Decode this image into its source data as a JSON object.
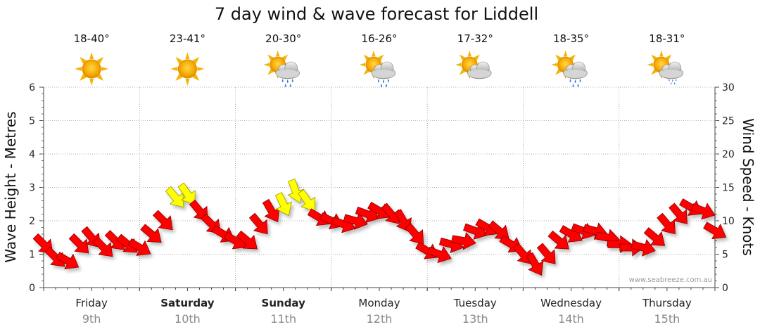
{
  "chart_data": {
    "type": "line",
    "title": "7 day wind & wave forecast for Liddell",
    "ylabel_left": "Wave Height - Metres",
    "ylabel_right": "Wind Speed - Knots",
    "ylim_left": [
      0,
      6
    ],
    "ylim_right": [
      0,
      30
    ],
    "yticks_left": [
      "0",
      "1",
      "2",
      "3",
      "4",
      "5",
      "6"
    ],
    "yticks_right": [
      "0",
      "5",
      "10",
      "15",
      "20",
      "25",
      "30"
    ],
    "days": [
      {
        "name": "Friday",
        "date": "9th",
        "bold": false,
        "temp": "18-40°",
        "icon": "sun-icon"
      },
      {
        "name": "Saturday",
        "date": "10th",
        "bold": true,
        "temp": "23-41°",
        "icon": "sun-icon"
      },
      {
        "name": "Sunday",
        "date": "11th",
        "bold": true,
        "temp": "20-30°",
        "icon": "sun-rain-cloud-icon"
      },
      {
        "name": "Monday",
        "date": "12th",
        "bold": false,
        "temp": "16-26°",
        "icon": "sun-rain-cloud-icon"
      },
      {
        "name": "Tuesday",
        "date": "13th",
        "bold": false,
        "temp": "17-32°",
        "icon": "sun-cloud-icon"
      },
      {
        "name": "Wednesday",
        "date": "14th",
        "bold": false,
        "temp": "18-35°",
        "icon": "sun-rain-cloud-icon"
      },
      {
        "name": "Thursday",
        "date": "15th",
        "bold": false,
        "temp": "18-31°",
        "icon": "sun-light-rain-icon"
      }
    ],
    "wind_series": {
      "name": "Wind speed (knots) with direction",
      "hours": [
        0,
        3,
        6,
        9,
        12,
        15,
        18,
        21,
        24,
        27,
        30,
        33,
        36,
        39,
        42,
        45,
        48,
        51,
        54,
        57,
        60,
        63,
        66,
        69,
        72,
        75,
        78,
        81,
        84,
        87,
        90,
        93,
        96,
        99,
        102,
        105,
        108,
        111,
        114,
        117,
        120,
        123,
        126,
        129,
        132,
        135,
        138,
        141,
        144,
        147,
        150,
        153,
        156,
        159,
        162,
        165,
        168
      ],
      "knots": [
        6.5,
        4.5,
        4.0,
        6.5,
        7.5,
        6.0,
        7.0,
        6.5,
        6.0,
        8.0,
        10.0,
        13.5,
        14.0,
        11.5,
        9.5,
        8.0,
        7.0,
        7.0,
        9.5,
        11.5,
        12.5,
        14.5,
        13.0,
        10.5,
        10.0,
        9.5,
        10.0,
        11.0,
        11.5,
        11.0,
        10.0,
        8.0,
        5.5,
        5.0,
        6.5,
        7.0,
        8.5,
        9.0,
        8.5,
        6.5,
        5.0,
        3.5,
        5.0,
        7.0,
        8.0,
        8.5,
        8.5,
        7.5,
        6.5,
        6.0,
        6.0,
        7.5,
        9.5,
        11.0,
        12.0,
        11.5,
        8.5
      ],
      "direction_deg": [
        315,
        315,
        300,
        315,
        320,
        315,
        315,
        310,
        300,
        310,
        315,
        320,
        325,
        320,
        315,
        300,
        300,
        310,
        320,
        330,
        335,
        340,
        325,
        300,
        295,
        290,
        285,
        290,
        300,
        320,
        330,
        320,
        300,
        290,
        285,
        280,
        290,
        300,
        310,
        300,
        320,
        330,
        320,
        310,
        300,
        290,
        285,
        280,
        270,
        270,
        285,
        310,
        320,
        320,
        300,
        290,
        300
      ]
    },
    "wave_series": {
      "name": "Wave height (m)",
      "values": []
    },
    "colors": {
      "strong": "#ff0000",
      "moderate": "#ffff00",
      "outline_strong": "#8a0000",
      "outline_moderate": "#999900"
    },
    "threshold_knots": 12.5
  },
  "credit": "www.seabreeze.com.au"
}
